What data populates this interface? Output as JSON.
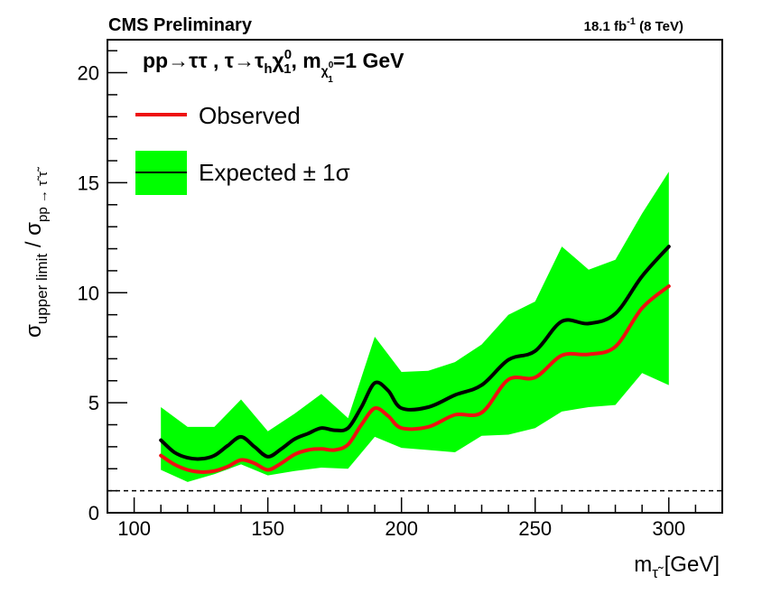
{
  "header": {
    "left": "CMS Preliminary",
    "right_lumi": "18.1 fb",
    "right_sup": "-1",
    "right_energy": " (8 TeV)"
  },
  "process": {
    "part1": "pp→ττ , τ→τ",
    "h": "h",
    "chi": "χ",
    "chi_sup": "0",
    "chi_sub": "1",
    "mass_prefix": ", m",
    "mass_sub": "χ",
    "mass_sub_sup": "0",
    "mass_sub_sub": "1",
    "mass_value": "=1 GeV"
  },
  "xlabel": {
    "main": "m",
    "sub": "τ̃",
    "unit": " [GeV]"
  },
  "ylabel": {
    "sigma1": "σ",
    "sub1": "upper limit",
    "slash": " / σ",
    "sub2": "pp → τ̃ τ̃"
  },
  "chart_data": {
    "type": "line",
    "xlim": [
      90,
      320
    ],
    "ylim": [
      0,
      21.5
    ],
    "xticks": [
      100,
      150,
      200,
      250,
      300
    ],
    "yticks": [
      0,
      5,
      10,
      15,
      20
    ],
    "reference_line": {
      "y": 1,
      "style": "dashed"
    },
    "legend": {
      "placement": "top-left"
    },
    "x": [
      110,
      115,
      120,
      125,
      130,
      135,
      140,
      145,
      150,
      155,
      160,
      165,
      170,
      175,
      180,
      185,
      190,
      195,
      200,
      210,
      220,
      230,
      240,
      250,
      260,
      270,
      280,
      290,
      300
    ],
    "series": [
      {
        "name": "Observed",
        "color": "#ee1111",
        "values": [
          2.6,
          2.2,
          1.95,
          1.85,
          1.9,
          2.1,
          2.4,
          2.25,
          1.95,
          2.25,
          2.65,
          2.85,
          2.9,
          2.85,
          3.1,
          4.0,
          4.75,
          4.4,
          3.85,
          3.9,
          4.45,
          4.55,
          6.05,
          6.15,
          7.15,
          7.2,
          7.55,
          9.3,
          10.3
        ]
      },
      {
        "name": "Expected ± 1σ",
        "color": "#000000",
        "values": [
          3.3,
          2.75,
          2.5,
          2.45,
          2.6,
          3.05,
          3.45,
          3.0,
          2.55,
          2.9,
          3.35,
          3.6,
          3.85,
          3.75,
          3.85,
          4.8,
          5.9,
          5.55,
          4.75,
          4.8,
          5.35,
          5.8,
          6.95,
          7.35,
          8.7,
          8.6,
          9.05,
          10.75,
          12.1
        ]
      }
    ],
    "band": {
      "color": "#00ff00",
      "x": [
        110,
        120,
        130,
        140,
        150,
        160,
        170,
        180,
        190,
        200,
        210,
        220,
        230,
        240,
        250,
        260,
        270,
        280,
        290,
        300
      ],
      "lower": [
        1.95,
        1.4,
        1.75,
        2.2,
        1.7,
        1.9,
        2.05,
        2.0,
        3.45,
        2.95,
        2.85,
        2.75,
        3.5,
        3.55,
        3.85,
        4.6,
        4.8,
        4.9,
        6.35,
        5.8
      ],
      "upper": [
        4.8,
        3.9,
        3.9,
        5.15,
        3.7,
        4.5,
        5.4,
        4.3,
        8.0,
        6.4,
        6.45,
        6.85,
        7.65,
        9.0,
        9.6,
        12.1,
        11.05,
        11.5,
        13.6,
        15.5
      ]
    }
  }
}
